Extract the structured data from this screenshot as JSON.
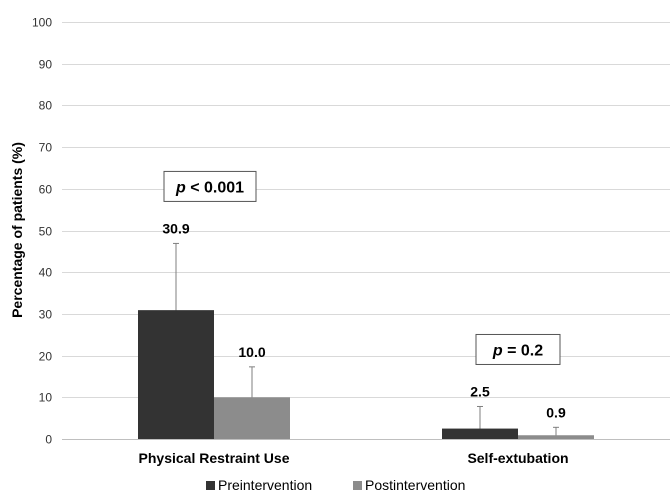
{
  "chart_data": {
    "type": "bar",
    "categories": [
      "Physical Restraint Use",
      "Self-extubation"
    ],
    "series": [
      {
        "name": "Preintervention",
        "values": [
          30.9,
          2.5
        ],
        "error_low": [
          15.0,
          0.0
        ],
        "error_high": [
          46.9,
          7.8
        ],
        "color": "#333333"
      },
      {
        "name": "Postintervention",
        "values": [
          10.0,
          0.9
        ],
        "error_low": [
          2.7,
          0.0
        ],
        "error_high": [
          17.3,
          2.8
        ],
        "color": "#8c8c8c"
      }
    ],
    "data_labels": [
      [
        "30.9",
        "2.5"
      ],
      [
        "10.0",
        "0.9"
      ]
    ],
    "ylabel": "Percentage of patients (%)",
    "ylim": [
      0,
      100
    ],
    "yticks": [
      0,
      10,
      20,
      30,
      40,
      50,
      60,
      70,
      80,
      90,
      100
    ],
    "grid": true,
    "legend_position": "bottom",
    "annotations": [
      {
        "category": "Physical Restraint Use",
        "p_symbol": "p",
        "text": " < 0.001"
      },
      {
        "category": "Self-extubation",
        "p_symbol": "p",
        "text": " = 0.2"
      }
    ]
  }
}
